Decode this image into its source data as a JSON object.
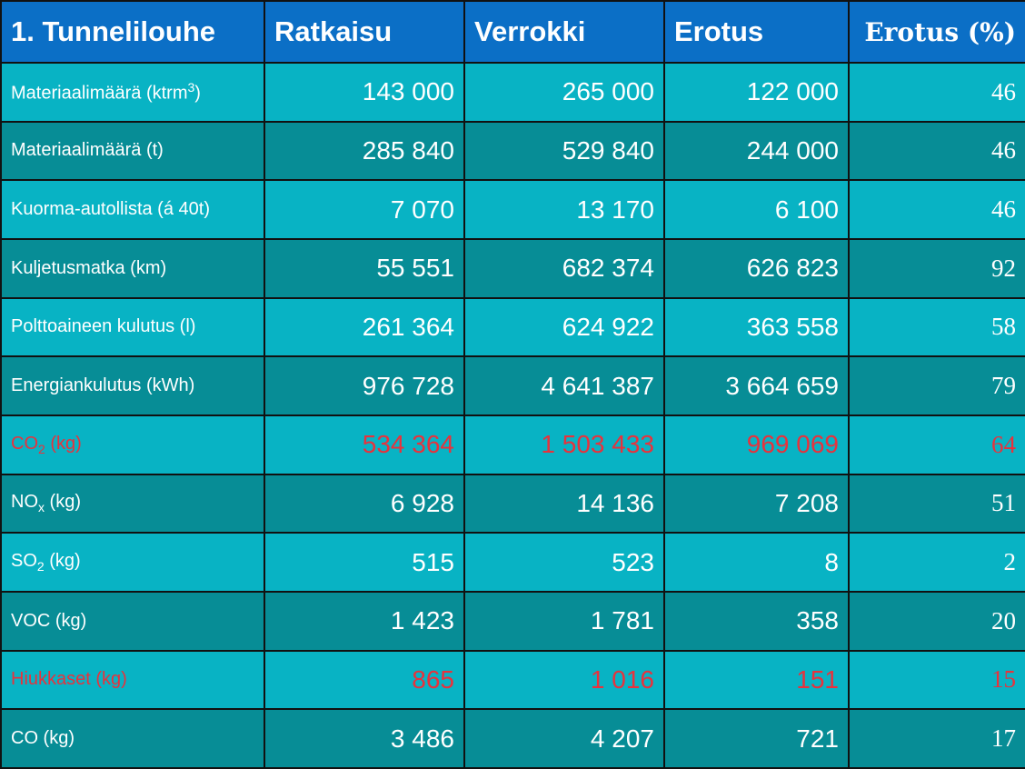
{
  "table": {
    "header": [
      "1. Tunnelilouhe",
      "Ratkaisu",
      "Verrokki",
      "Erotus",
      "Erotus (%)"
    ],
    "rows": [
      {
        "label": [
          {
            "text": "Materiaalimäärä (ktrm"
          },
          {
            "sup": "3"
          },
          {
            "text": ")"
          }
        ],
        "cells": [
          "143 000",
          "265 000",
          "122 000",
          "46"
        ]
      },
      {
        "label": [
          {
            "text": "Materiaalimäärä (t)"
          }
        ],
        "cells": [
          "285 840",
          "529 840",
          "244 000",
          "46"
        ]
      },
      {
        "label": [
          {
            "text": "Kuorma-autollista (á 40t)"
          }
        ],
        "cells": [
          "7 070",
          "13 170",
          "6 100",
          "46"
        ]
      },
      {
        "label": [
          {
            "text": "Kuljetusmatka (km)"
          }
        ],
        "cells": [
          "55 551",
          "682 374",
          "626 823",
          "92"
        ]
      },
      {
        "label": [
          {
            "text": "Polttoaineen kulutus (l)"
          }
        ],
        "cells": [
          "261 364",
          "624 922",
          "363 558",
          "58"
        ]
      },
      {
        "label": [
          {
            "text": "Energiankulutus (kWh)"
          }
        ],
        "cells": [
          "976 728",
          "4 641 387",
          "3 664 659",
          "79"
        ]
      },
      {
        "label": [
          {
            "text": "CO"
          },
          {
            "sub": "2"
          },
          {
            "text": " (kg)"
          }
        ],
        "cells": [
          "534 364",
          "1 503 433",
          "969 069",
          "64"
        ],
        "color": "#e8323c"
      },
      {
        "label": [
          {
            "text": "NO"
          },
          {
            "sub": "x"
          },
          {
            "text": " (kg)"
          }
        ],
        "cells": [
          "6 928",
          "14 136",
          "7 208",
          "51"
        ]
      },
      {
        "label": [
          {
            "text": "SO"
          },
          {
            "sub": "2"
          },
          {
            "text": " (kg)"
          }
        ],
        "cells": [
          "515",
          "523",
          "8",
          "2"
        ]
      },
      {
        "label": [
          {
            "text": "VOC (kg)"
          }
        ],
        "cells": [
          "1 423",
          "1 781",
          "358",
          "20"
        ]
      },
      {
        "label": [
          {
            "text": "Hiukkaset (kg)"
          }
        ],
        "cells": [
          "865",
          "1 016",
          "151",
          "15"
        ],
        "color": "#e8323c"
      },
      {
        "label": [
          {
            "text": "CO (kg)"
          }
        ],
        "cells": [
          "3 486",
          "4 207",
          "721",
          "17"
        ]
      }
    ]
  }
}
